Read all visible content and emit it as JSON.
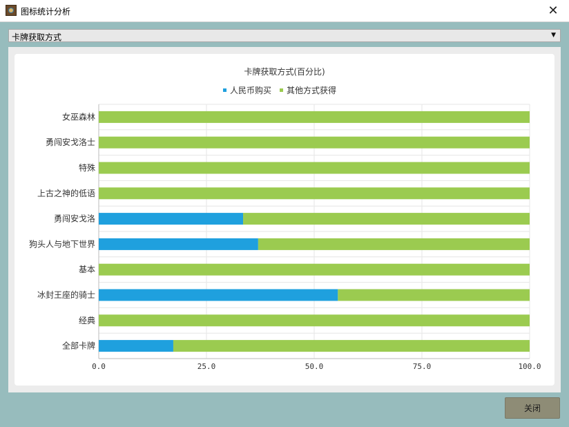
{
  "window": {
    "title": "图标统计分析",
    "icon": "card-deck-icon",
    "close_icon": "close-icon"
  },
  "selector": {
    "value": "卡牌获取方式"
  },
  "footer": {
    "close_label": "关闭"
  },
  "chart_data": {
    "type": "bar",
    "orientation": "horizontal",
    "stacked": true,
    "title": "卡牌获取方式(百分比)",
    "categories": [
      "女巫森林",
      "勇闯安戈洛士",
      "特殊",
      "上古之神的低语",
      "勇闯安戈洛",
      "狗头人与地下世界",
      "基本",
      "冰封王座的骑士",
      "经典",
      "全部卡牌"
    ],
    "series": [
      {
        "name": "人民币购买",
        "color": "#1fa0de",
        "values": [
          0,
          0,
          0,
          0,
          33.5,
          37,
          0,
          55.5,
          0,
          17.3
        ]
      },
      {
        "name": "其他方式获得",
        "color": "#9bcb50",
        "values": [
          100,
          100,
          100,
          100,
          66.5,
          63,
          100,
          44.5,
          100,
          82.7
        ]
      }
    ],
    "xlim": [
      0,
      100
    ],
    "xticks": [
      "0.0",
      "25.0",
      "50.0",
      "75.0",
      "100.0"
    ],
    "grid": true,
    "legend": "top-center"
  }
}
